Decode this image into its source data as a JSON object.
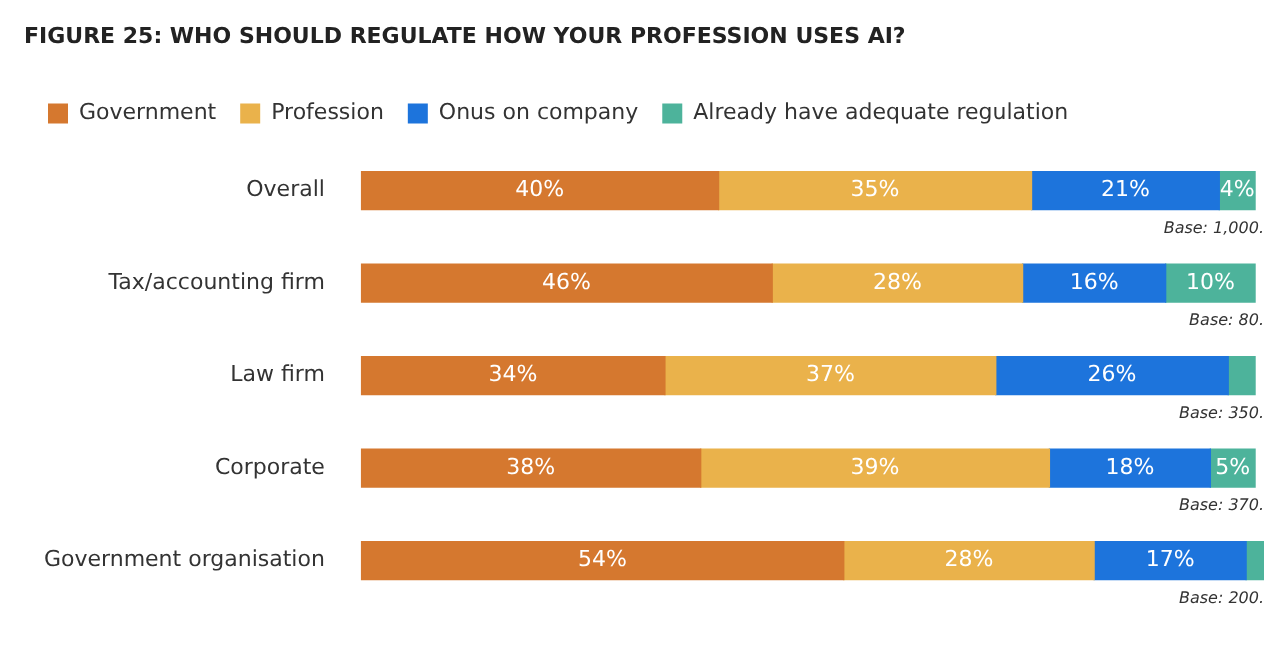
{
  "chart_data": {
    "type": "bar",
    "orientation": "horizontal",
    "stacked": true,
    "title": "FIGURE 25: WHO SHOULD REGULATE HOW YOUR PROFESSION USES AI?",
    "categories": [
      "Overall",
      "Tax/accounting firm",
      "Law firm",
      "Corporate",
      "Government organisation"
    ],
    "series": [
      {
        "name": "Government",
        "color": "#d5782f",
        "values": [
          40,
          46,
          34,
          38,
          54
        ],
        "value_labels": [
          "40%",
          "46%",
          "34%",
          "38%",
          "54%"
        ]
      },
      {
        "name": "Profession",
        "color": "#eab24b",
        "values": [
          35,
          28,
          37,
          39,
          28
        ],
        "value_labels": [
          "35%",
          "28%",
          "37%",
          "39%",
          "28%"
        ]
      },
      {
        "name": "Onus on company",
        "color": "#1d74dc",
        "values": [
          21,
          16,
          26,
          18,
          17
        ],
        "value_labels": [
          "21%",
          "16%",
          "26%",
          "18%",
          "17%"
        ]
      },
      {
        "name": "Already have adequate regulation",
        "color": "#4db39b",
        "values": [
          4,
          10,
          3,
          5,
          2
        ],
        "value_labels": [
          "4%",
          "10%",
          null,
          "5%",
          null
        ]
      }
    ],
    "annotations": [
      "Base: 1,000.",
      "Base: 80.",
      "Base: 350.",
      "Base: 370.",
      "Base: 200."
    ],
    "legend": "top left"
  }
}
